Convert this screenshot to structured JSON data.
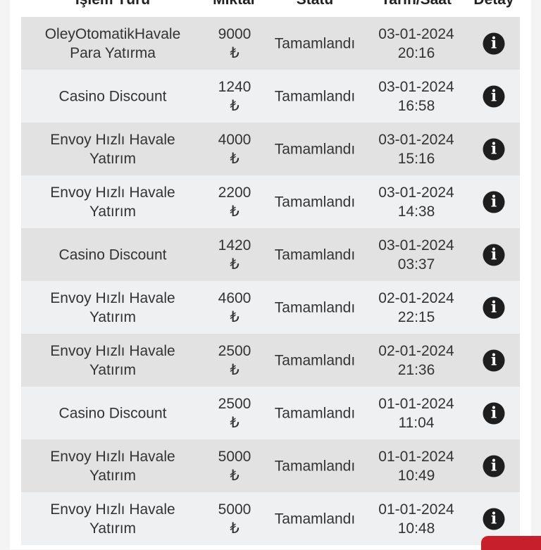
{
  "headers": [
    "İşlem Türü",
    "Miktar",
    "Statü",
    "Tarih/Saat",
    "Detay"
  ],
  "currency": "₺",
  "detail_icon": "info-circle-icon",
  "rows": [
    {
      "type": "OleyOtomatikHavale\nPara Yatırma",
      "amount": "9000",
      "status": "Tamamlandı",
      "date": "03-01-2024",
      "time": "20:16"
    },
    {
      "type": "Casino Discount",
      "amount": "1240",
      "status": "Tamamlandı",
      "date": "03-01-2024",
      "time": "16:58"
    },
    {
      "type": "Envoy Hızlı Havale\nYatırım",
      "amount": "4000",
      "status": "Tamamlandı",
      "date": "03-01-2024",
      "time": "15:16"
    },
    {
      "type": "Envoy Hızlı Havale\nYatırım",
      "amount": "2200",
      "status": "Tamamlandı",
      "date": "03-01-2024",
      "time": "14:38"
    },
    {
      "type": "Casino Discount",
      "amount": "1420",
      "status": "Tamamlandı",
      "date": "03-01-2024",
      "time": "03:37"
    },
    {
      "type": "Envoy Hızlı Havale\nYatırım",
      "amount": "4600",
      "status": "Tamamlandı",
      "date": "02-01-2024",
      "time": "22:15"
    },
    {
      "type": "Envoy Hızlı Havale\nYatırım",
      "amount": "2500",
      "status": "Tamamlandı",
      "date": "02-01-2024",
      "time": "21:36"
    },
    {
      "type": "Casino Discount",
      "amount": "2500",
      "status": "Tamamlandı",
      "date": "01-01-2024",
      "time": "11:04"
    },
    {
      "type": "Envoy Hızlı Havale\nYatırım",
      "amount": "5000",
      "status": "Tamamlandı",
      "date": "01-01-2024",
      "time": "10:49"
    },
    {
      "type": "Envoy Hızlı Havale\nYatırım",
      "amount": "5000",
      "status": "Tamamlandı",
      "date": "01-01-2024",
      "time": "10:48"
    }
  ]
}
